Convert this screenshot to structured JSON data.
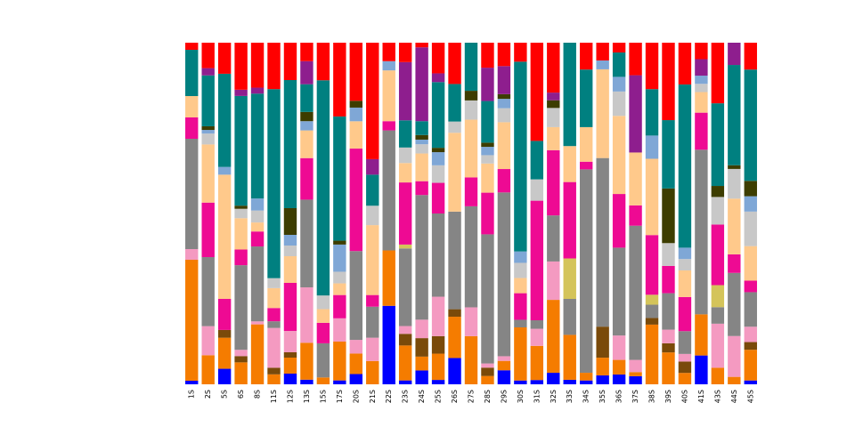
{
  "chart_data": {
    "type": "bar",
    "stacked": true,
    "normalized": true,
    "ylim": [
      0,
      1
    ],
    "axes_visible": false,
    "grid": false,
    "legend": "none",
    "title": "",
    "xlabel": "",
    "ylabel": "",
    "categories": [
      "1S",
      "2S",
      "5S",
      "6S",
      "8S",
      "11S",
      "12S",
      "13S",
      "15S",
      "17S",
      "20S",
      "21S",
      "22S",
      "23S",
      "24S",
      "25S",
      "26S",
      "27S",
      "28S",
      "29S",
      "30S",
      "31S",
      "32S",
      "33S",
      "34S",
      "35S",
      "36S",
      "37S",
      "38S",
      "39S",
      "40S",
      "41S",
      "43S",
      "44S",
      "45S"
    ],
    "stack_order": [
      "blue",
      "orange",
      "brown",
      "pink",
      "gray",
      "olive",
      "magenta",
      "peach",
      "silver",
      "lightblue",
      "darkolive",
      "teal",
      "purple",
      "red"
    ],
    "colors": {
      "blue": "#0000ff",
      "orange": "#f57c00",
      "brown": "#7a4a0a",
      "pink": "#f49ac1",
      "gray": "#858585",
      "olive": "#d4c45a",
      "magenta": "#ee0a93",
      "peach": "#ffc98b",
      "silver": "#c8c8c8",
      "lightblue": "#7fa7d6",
      "darkolive": "#3d3d00",
      "teal": "#008080",
      "purple": "#8e1e8e",
      "red": "#ff0000"
    },
    "series": [
      {
        "key": "blue",
        "values": [
          0.01,
          0.0,
          0.02,
          0.0,
          0.0,
          0.0,
          0.02,
          0.01,
          0.0,
          0.01,
          0.03,
          0.0,
          0.17,
          0.01,
          0.03,
          0.01,
          0.07,
          0.0,
          0.0,
          0.03,
          0.01,
          0.01,
          0.03,
          0.01,
          0.01,
          0.02,
          0.02,
          0.02,
          0.0,
          0.0,
          0.0,
          0.07,
          0.0,
          0.0,
          0.01
        ]
      },
      {
        "key": "orange",
        "values": [
          0.34,
          0.08,
          0.04,
          0.07,
          0.2,
          0.03,
          0.03,
          0.08,
          0.02,
          0.1,
          0.06,
          0.06,
          0.12,
          0.09,
          0.03,
          0.06,
          0.11,
          0.1,
          0.02,
          0.02,
          0.14,
          0.08,
          0.19,
          0.1,
          0.02,
          0.04,
          0.03,
          0.01,
          0.18,
          0.07,
          0.03,
          0.1,
          0.03,
          0.02,
          0.08
        ]
      },
      {
        "key": "brown",
        "values": [
          0.0,
          0.0,
          0.01,
          0.02,
          0.0,
          0.02,
          0.01,
          0.0,
          0.0,
          0.0,
          0.0,
          0.0,
          0.0,
          0.03,
          0.04,
          0.04,
          0.02,
          0.0,
          0.02,
          0.0,
          0.0,
          0.0,
          0.0,
          0.0,
          0.0,
          0.07,
          0.0,
          0.0,
          0.02,
          0.02,
          0.03,
          0.0,
          0.0,
          0.0,
          0.02
        ]
      },
      {
        "key": "pink",
        "values": [
          0.03,
          0.08,
          0.0,
          0.02,
          0.01,
          0.12,
          0.04,
          0.12,
          0.0,
          0.06,
          0.04,
          0.06,
          0.0,
          0.02,
          0.04,
          0.09,
          0.0,
          0.06,
          0.01,
          0.01,
          0.0,
          0.04,
          0.1,
          0.0,
          0.0,
          0.0,
          0.05,
          0.03,
          0.0,
          0.03,
          0.02,
          0.0,
          0.08,
          0.11,
          0.04
        ]
      },
      {
        "key": "gray",
        "values": [
          0.31,
          0.19,
          0.0,
          0.27,
          0.25,
          0.02,
          0.0,
          0.19,
          0.1,
          0.0,
          0.26,
          0.08,
          0.26,
          0.2,
          0.27,
          0.19,
          0.26,
          0.21,
          0.31,
          0.35,
          0.02,
          0.02,
          0.12,
          0.08,
          0.53,
          0.38,
          0.18,
          0.33,
          0.04,
          0.08,
          0.06,
          0.4,
          0.03,
          0.17,
          0.09
        ]
      },
      {
        "key": "olive",
        "values": [
          0.0,
          0.0,
          0.0,
          0.0,
          0.0,
          0.0,
          0.0,
          0.0,
          0.0,
          0.0,
          0.0,
          0.0,
          0.0,
          0.01,
          0.0,
          0.0,
          0.0,
          0.0,
          0.0,
          0.0,
          0.0,
          0.0,
          0.0,
          0.09,
          0.0,
          0.0,
          0.0,
          0.0,
          0.03,
          0.0,
          0.0,
          0.0,
          0.04,
          0.0,
          0.0
        ]
      },
      {
        "key": "magenta",
        "values": [
          0.06,
          0.15,
          0.04,
          0.05,
          0.05,
          0.04,
          0.09,
          0.09,
          0.06,
          0.06,
          0.3,
          0.03,
          0.02,
          0.16,
          0.03,
          0.07,
          0.0,
          0.06,
          0.1,
          0.05,
          0.07,
          0.28,
          0.17,
          0.17,
          0.02,
          0.0,
          0.11,
          0.05,
          0.18,
          0.06,
          0.09,
          0.09,
          0.11,
          0.05,
          0.03
        ]
      },
      {
        "key": "peach",
        "values": [
          0.06,
          0.16,
          0.16,
          0.1,
          0.03,
          0.06,
          0.05,
          0.06,
          0.04,
          0.03,
          0.08,
          0.18,
          0.11,
          0.05,
          0.06,
          0.0,
          0.21,
          0.12,
          0.07,
          0.1,
          0.04,
          0.0,
          0.06,
          0.08,
          0.09,
          0.2,
          0.16,
          0.13,
          0.23,
          0.0,
          0.07,
          0.05,
          0.0,
          0.15,
          0.09
        ]
      },
      {
        "key": "silver",
        "values": [
          0.0,
          0.03,
          0.0,
          0.03,
          0.04,
          0.03,
          0.02,
          0.0,
          0.04,
          0.03,
          0.0,
          0.05,
          0.0,
          0.04,
          0.02,
          0.04,
          0.03,
          0.04,
          0.02,
          0.03,
          0.04,
          0.05,
          0.05,
          0.0,
          0.0,
          0.0,
          0.05,
          0.0,
          0.0,
          0.05,
          0.03,
          0.02,
          0.05,
          0.08,
          0.09
        ]
      },
      {
        "key": "lightblue",
        "values": [
          0.0,
          0.01,
          0.01,
          0.0,
          0.04,
          0.0,
          0.02,
          0.02,
          0.0,
          0.07,
          0.04,
          0.0,
          0.02,
          0.0,
          0.01,
          0.03,
          0.0,
          0.0,
          0.02,
          0.02,
          0.03,
          0.0,
          0.0,
          0.0,
          0.0,
          0.02,
          0.03,
          0.0,
          0.07,
          0.0,
          0.03,
          0.02,
          0.0,
          0.0,
          0.04
        ]
      },
      {
        "key": "darkolive",
        "values": [
          0.0,
          0.01,
          0.0,
          0.01,
          0.0,
          0.0,
          0.05,
          0.02,
          0.0,
          0.01,
          0.02,
          0.0,
          0.0,
          0.0,
          0.01,
          0.01,
          0.0,
          0.02,
          0.01,
          0.01,
          0.0,
          0.0,
          0.02,
          0.0,
          0.0,
          0.0,
          0.0,
          0.0,
          0.0,
          0.12,
          0.0,
          0.0,
          0.02,
          0.01,
          0.04
        ]
      },
      {
        "key": "teal",
        "values": [
          0.13,
          0.14,
          0.12,
          0.35,
          0.35,
          0.57,
          0.24,
          0.06,
          0.63,
          0.32,
          0.0,
          0.08,
          0.0,
          0.07,
          0.03,
          0.15,
          0.1,
          0.1,
          0.1,
          0.0,
          0.5,
          0.09,
          0.0,
          0.23,
          0.15,
          0.0,
          0.05,
          0.0,
          0.14,
          0.15,
          0.43,
          0.0,
          0.15,
          0.27,
          0.29
        ]
      },
      {
        "key": "purple",
        "values": [
          0.0,
          0.02,
          0.0,
          0.02,
          0.02,
          0.0,
          0.0,
          0.05,
          0.0,
          0.0,
          0.0,
          0.04,
          0.0,
          0.15,
          0.16,
          0.02,
          0.0,
          0.0,
          0.08,
          0.06,
          0.0,
          0.0,
          0.02,
          0.0,
          0.0,
          0.0,
          0.0,
          0.19,
          0.0,
          0.0,
          0.0,
          0.04,
          0.0,
          0.06,
          0.0
        ]
      },
      {
        "key": "red",
        "values": [
          0.02,
          0.07,
          0.04,
          0.15,
          0.15,
          0.14,
          0.07,
          0.04,
          0.11,
          0.19,
          0.17,
          0.3,
          0.04,
          0.05,
          0.01,
          0.07,
          0.11,
          0.0,
          0.06,
          0.05,
          0.05,
          0.23,
          0.13,
          0.0,
          0.07,
          0.04,
          0.02,
          0.08,
          0.14,
          0.17,
          0.11,
          0.04,
          0.11,
          0.0,
          0.07
        ]
      }
    ]
  }
}
